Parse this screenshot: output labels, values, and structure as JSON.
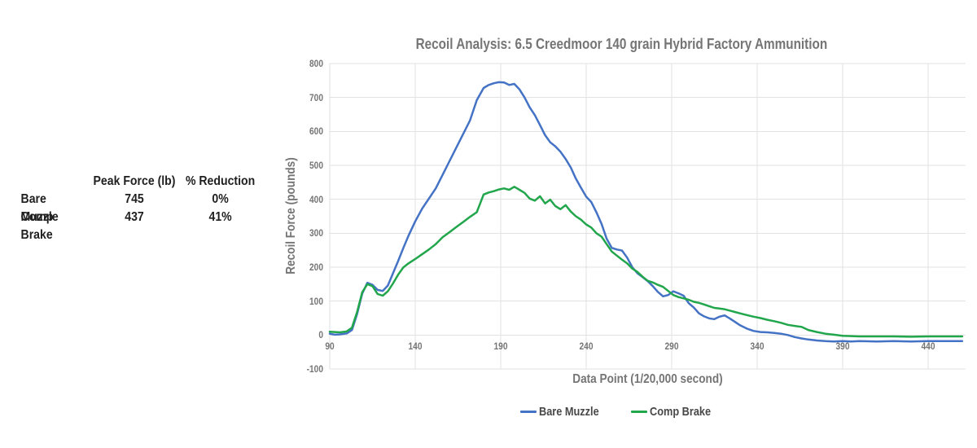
{
  "table": {
    "headers": [
      "",
      "Peak Force (lb)",
      "% Reduction"
    ],
    "rows": [
      {
        "label": "Bare Muzzle",
        "peak_force": "745",
        "reduction": "0%"
      },
      {
        "label": "Comp Brake",
        "peak_force": "437",
        "reduction": "41%"
      }
    ]
  },
  "chart_data": {
    "type": "line",
    "title": "Recoil Analysis: 6.5 Creedmoor 140 grain Hybrid Factory Ammunition",
    "xlabel": "Data Point (1/20,000 second)",
    "ylabel": "Recoil Force (pounds)",
    "xlim": [
      90,
      462
    ],
    "ylim": [
      -100,
      800
    ],
    "x_ticks": [
      90,
      140,
      190,
      240,
      290,
      340,
      390,
      440
    ],
    "y_ticks": [
      -100,
      0,
      100,
      200,
      300,
      400,
      500,
      600,
      700,
      800
    ],
    "grid": true,
    "legend_position": "bottom",
    "grid_color": "#e2e2e2",
    "colors": {
      "bare_muzzle": "#4472c4",
      "comp_brake": "#22a64c"
    },
    "x": [
      90,
      93,
      96,
      100,
      103,
      106,
      109,
      112,
      115,
      118,
      121,
      124,
      127,
      130,
      133,
      136,
      140,
      144,
      148,
      152,
      156,
      160,
      164,
      168,
      172,
      176,
      180,
      183,
      186,
      189,
      192,
      195,
      198,
      201,
      204,
      207,
      210,
      213,
      216,
      219,
      222,
      225,
      228,
      231,
      234,
      237,
      240,
      243,
      246,
      249,
      252,
      255,
      258,
      261,
      264,
      267,
      270,
      273,
      276,
      279,
      282,
      285,
      288,
      291,
      294,
      297,
      300,
      303,
      306,
      309,
      312,
      315,
      318,
      321,
      324,
      327,
      330,
      334,
      338,
      342,
      346,
      350,
      354,
      358,
      362,
      366,
      370,
      375,
      380,
      385,
      390,
      395,
      400,
      410,
      420,
      430,
      440,
      450,
      455,
      460
    ],
    "series": [
      {
        "name": "Bare Muzzle",
        "key": "bare_muzzle",
        "peak": 745,
        "values": [
          4,
          1,
          2,
          5,
          15,
          62,
          122,
          154,
          148,
          133,
          130,
          146,
          182,
          218,
          256,
          292,
          335,
          372,
          402,
          432,
          472,
          512,
          552,
          592,
          632,
          692,
          728,
          737,
          742,
          745,
          744,
          737,
          740,
          724,
          700,
          671,
          648,
          619,
          589,
          568,
          556,
          540,
          519,
          494,
          461,
          434,
          408,
          392,
          362,
          328,
          284,
          257,
          252,
          249,
          228,
          200,
          182,
          171,
          159,
          144,
          127,
          114,
          118,
          129,
          123,
          116,
          94,
          81,
          64,
          55,
          49,
          47,
          54,
          58,
          49,
          39,
          29,
          19,
          12,
          9,
          8,
          6,
          4,
          0,
          -6,
          -10,
          -13,
          -16,
          -18,
          -19,
          -18,
          -19,
          -18,
          -19,
          -18,
          -19,
          -18,
          -18,
          -18,
          -18
        ]
      },
      {
        "name": "Comp Brake",
        "key": "comp_brake",
        "peak": 437,
        "values": [
          10,
          9,
          8,
          11,
          22,
          68,
          126,
          150,
          144,
          121,
          116,
          129,
          152,
          178,
          199,
          211,
          224,
          238,
          252,
          268,
          288,
          303,
          318,
          333,
          348,
          362,
          414,
          420,
          424,
          429,
          432,
          428,
          437,
          428,
          419,
          402,
          396,
          409,
          388,
          399,
          380,
          371,
          383,
          364,
          350,
          340,
          326,
          317,
          300,
          290,
          268,
          246,
          234,
          222,
          211,
          196,
          186,
          172,
          160,
          155,
          148,
          142,
          130,
          118,
          112,
          108,
          104,
          98,
          95,
          90,
          85,
          80,
          78,
          76,
          72,
          68,
          64,
          59,
          54,
          50,
          45,
          41,
          36,
          30,
          27,
          24,
          15,
          9,
          4,
          1,
          -2,
          -3,
          -4,
          -4,
          -4,
          -5,
          -4,
          -4,
          -4,
          -4
        ]
      }
    ]
  }
}
